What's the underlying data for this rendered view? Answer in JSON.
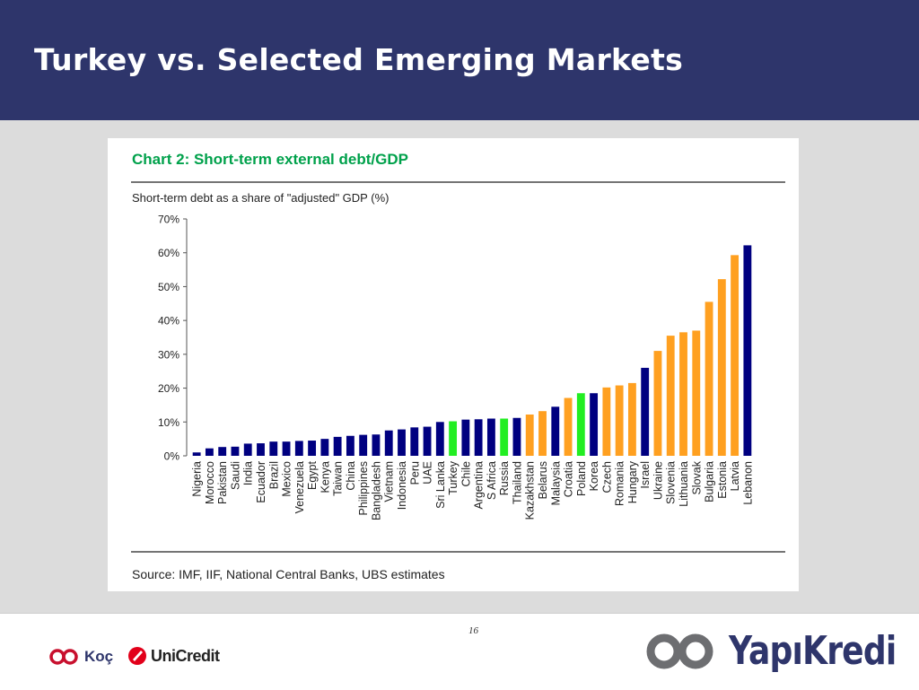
{
  "slide": {
    "title": "Turkey vs. Selected Emerging Markets",
    "page_number": "16"
  },
  "logos": {
    "koc": "Koç",
    "unicredit": "UniCredit",
    "yapikredi": "YapıKredi"
  },
  "colors": {
    "header": "#2e356b",
    "navy_bar": "#000080",
    "orange_bar": "#ffa020",
    "green_bar": "#22ee22",
    "chart_title": "#00a14b"
  },
  "chart_data": {
    "type": "bar",
    "title": "Chart 2: Short-term external debt/GDP",
    "ylabel": "Short-term debt as a share of \"adjusted\" GDP (%)",
    "source": "Source: IMF, IIF, National Central Banks, UBS estimates",
    "ylim": [
      0,
      70
    ],
    "yticks": [
      "0%",
      "10%",
      "20%",
      "30%",
      "40%",
      "50%",
      "60%",
      "70%"
    ],
    "grid": false,
    "categories": [
      "Nigeria",
      "Morocco",
      "Pakistan",
      "Saudi",
      "India",
      "Ecuador",
      "Brazil",
      "Mexico",
      "Venezuela",
      "Egypt",
      "Kenya",
      "Taiwan",
      "China",
      "Philippines",
      "Bangladesh",
      "Vietnam",
      "Indonesia",
      "Peru",
      "UAE",
      "Sri Lanka",
      "Turkey",
      "Chile",
      "Argentina",
      "S Africa",
      "Russia",
      "Thailand",
      "Kazakhstan",
      "Belarus",
      "Malaysia",
      "Croatia",
      "Poland",
      "Korea",
      "Czech",
      "Romania",
      "Hungary",
      "Israel",
      "Ukraine",
      "Slovenia",
      "Lithuania",
      "Slovak",
      "Bulgaria",
      "Estonia",
      "Latvia",
      "Lebanon"
    ],
    "values": [
      1.0,
      2.2,
      2.6,
      2.7,
      3.6,
      3.7,
      4.2,
      4.2,
      4.4,
      4.5,
      5.0,
      5.6,
      5.9,
      6.2,
      6.3,
      7.5,
      7.8,
      8.4,
      8.6,
      10.0,
      10.2,
      10.7,
      10.8,
      11.0,
      11.0,
      11.2,
      12.2,
      13.2,
      14.5,
      17.1,
      18.5,
      18.5,
      20.2,
      20.8,
      21.5,
      26.0,
      31.0,
      35.5,
      36.5,
      37.0,
      45.5,
      52.2,
      59.3,
      62.2
    ],
    "bar_colors": [
      "#000080",
      "#000080",
      "#000080",
      "#000080",
      "#000080",
      "#000080",
      "#000080",
      "#000080",
      "#000080",
      "#000080",
      "#000080",
      "#000080",
      "#000080",
      "#000080",
      "#000080",
      "#000080",
      "#000080",
      "#000080",
      "#000080",
      "#000080",
      "#22ee22",
      "#000080",
      "#000080",
      "#000080",
      "#22ee22",
      "#000080",
      "#ffa020",
      "#ffa020",
      "#000080",
      "#ffa020",
      "#22ee22",
      "#000080",
      "#ffa020",
      "#ffa020",
      "#ffa020",
      "#000080",
      "#ffa020",
      "#ffa020",
      "#ffa020",
      "#ffa020",
      "#ffa020",
      "#ffa020",
      "#ffa020",
      "#000080"
    ]
  }
}
